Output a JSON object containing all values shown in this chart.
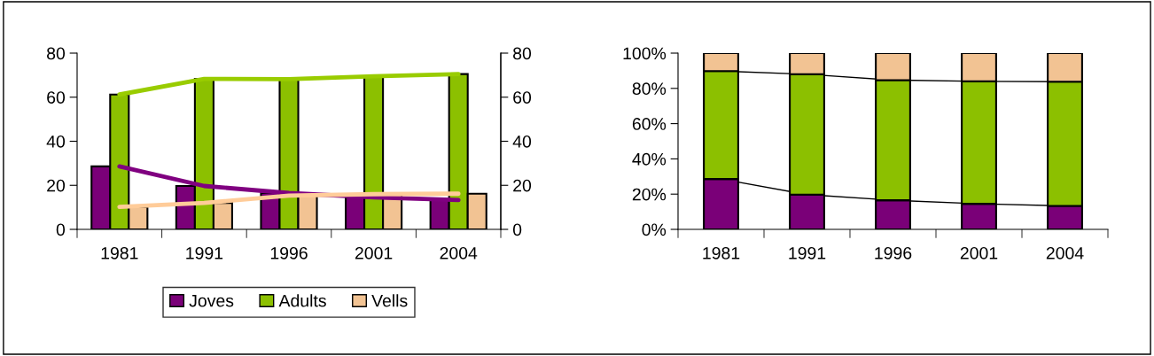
{
  "chart_data": [
    {
      "type": "bar",
      "categories": [
        "1981",
        "1991",
        "1996",
        "2001",
        "2004"
      ],
      "series": [
        {
          "name": "Joves",
          "color": "#7a0078",
          "values": [
            28.6,
            19.7,
            16.5,
            14.5,
            13.3
          ]
        },
        {
          "name": "Adults",
          "color": "#8cc000",
          "values": [
            61.2,
            68.3,
            68.2,
            69.5,
            70.5
          ]
        },
        {
          "name": "Vells",
          "color": "#f2c393",
          "values": [
            10.2,
            12.0,
            15.3,
            16.0,
            16.2
          ]
        },
        {
          "type": "line",
          "color": "#800080",
          "values": [
            28.6,
            19.7,
            16.5,
            14.5,
            13.3
          ]
        },
        {
          "type": "line",
          "color": "#99cc00",
          "values": [
            61.2,
            68.3,
            68.2,
            69.5,
            70.5
          ]
        },
        {
          "type": "line",
          "color": "#ffcc99",
          "values": [
            10.2,
            12.0,
            15.3,
            16.0,
            16.2
          ]
        }
      ],
      "ylim": [
        0,
        80
      ],
      "yticks": [
        0,
        20,
        40,
        60,
        80
      ],
      "y2lim": [
        0,
        80
      ],
      "y2ticks": [
        0,
        20,
        40,
        60,
        80
      ],
      "legend": "bottom",
      "grid": false
    },
    {
      "type": "bar",
      "stacked": true,
      "categories": [
        "1981",
        "1991",
        "1996",
        "2001",
        "2004"
      ],
      "series": [
        {
          "color": "#7a0078",
          "values": [
            28.6,
            19.7,
            16.5,
            14.5,
            13.3
          ]
        },
        {
          "color": "#8cc000",
          "values": [
            61.2,
            68.3,
            68.2,
            69.5,
            70.5
          ]
        },
        {
          "color": "#f2c393",
          "values": [
            10.2,
            12.0,
            15.3,
            16.0,
            16.2
          ]
        },
        {
          "type": "line",
          "color": "#000000",
          "values": [
            28.6,
            19.7,
            16.5,
            14.5,
            13.3
          ]
        },
        {
          "type": "line",
          "color": "#000000",
          "values": [
            89.8,
            88.0,
            84.7,
            84.0,
            83.8
          ]
        }
      ],
      "ylim": [
        0,
        100
      ],
      "yticks": [
        {
          "value": 0,
          "label": "0%"
        },
        {
          "value": 20,
          "label": "20%"
        },
        {
          "value": 40,
          "label": "40%"
        },
        {
          "value": 60,
          "label": "60%"
        },
        {
          "value": 80,
          "label": "80%"
        },
        {
          "value": 100,
          "label": "100%"
        }
      ],
      "legend": false,
      "grid": false
    }
  ]
}
